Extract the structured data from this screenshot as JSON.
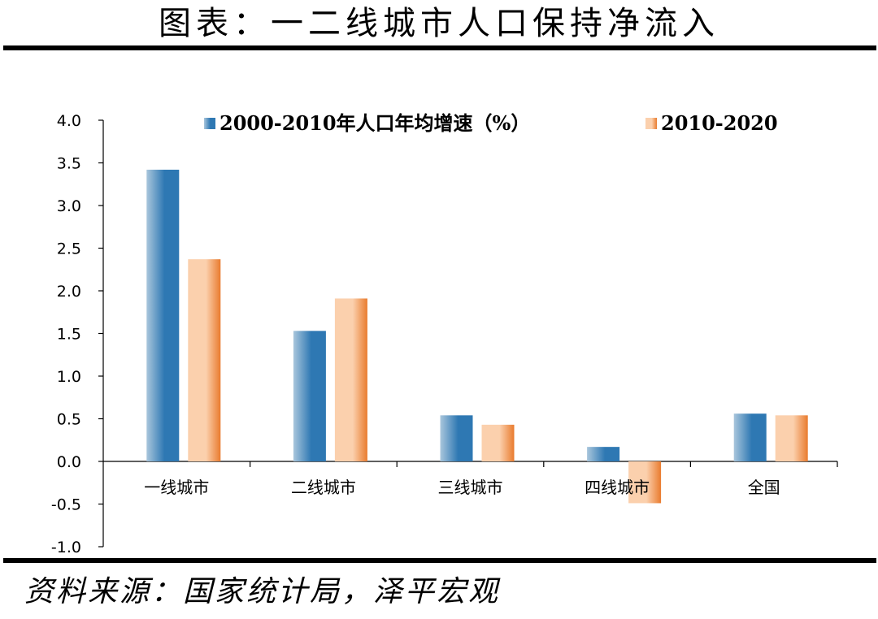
{
  "page": {
    "title": "图表：一二线城市人口保持净流入",
    "source": "资料来源：国家统计局，泽平宏观"
  },
  "colors": {
    "series1_light": "#a9c6dc",
    "series1_dark": "#2e78b3",
    "series2_light": "#fbd0ad",
    "series2_dark": "#e97b2e"
  },
  "chart_data": {
    "type": "bar",
    "categories": [
      "一线城市",
      "二线城市",
      "三线城市",
      "四线城市",
      "全国"
    ],
    "series": [
      {
        "name": "2000-2010年人口年均增速（%）",
        "values": [
          3.42,
          1.53,
          0.54,
          0.17,
          0.56
        ]
      },
      {
        "name": "2010-2020",
        "values": [
          2.37,
          1.91,
          0.43,
          -0.49,
          0.54
        ]
      }
    ],
    "ylim": [
      -1.0,
      4.0
    ],
    "yticks": [
      "4.0",
      "3.5",
      "3.0",
      "2.5",
      "2.0",
      "1.5",
      "1.0",
      "0.5",
      "0.0",
      "-0.5",
      "-1.0"
    ],
    "ytick_values": [
      4.0,
      3.5,
      3.0,
      2.5,
      2.0,
      1.5,
      1.0,
      0.5,
      0.0,
      -0.5,
      -1.0
    ],
    "grid": false,
    "legend_position": "top"
  }
}
